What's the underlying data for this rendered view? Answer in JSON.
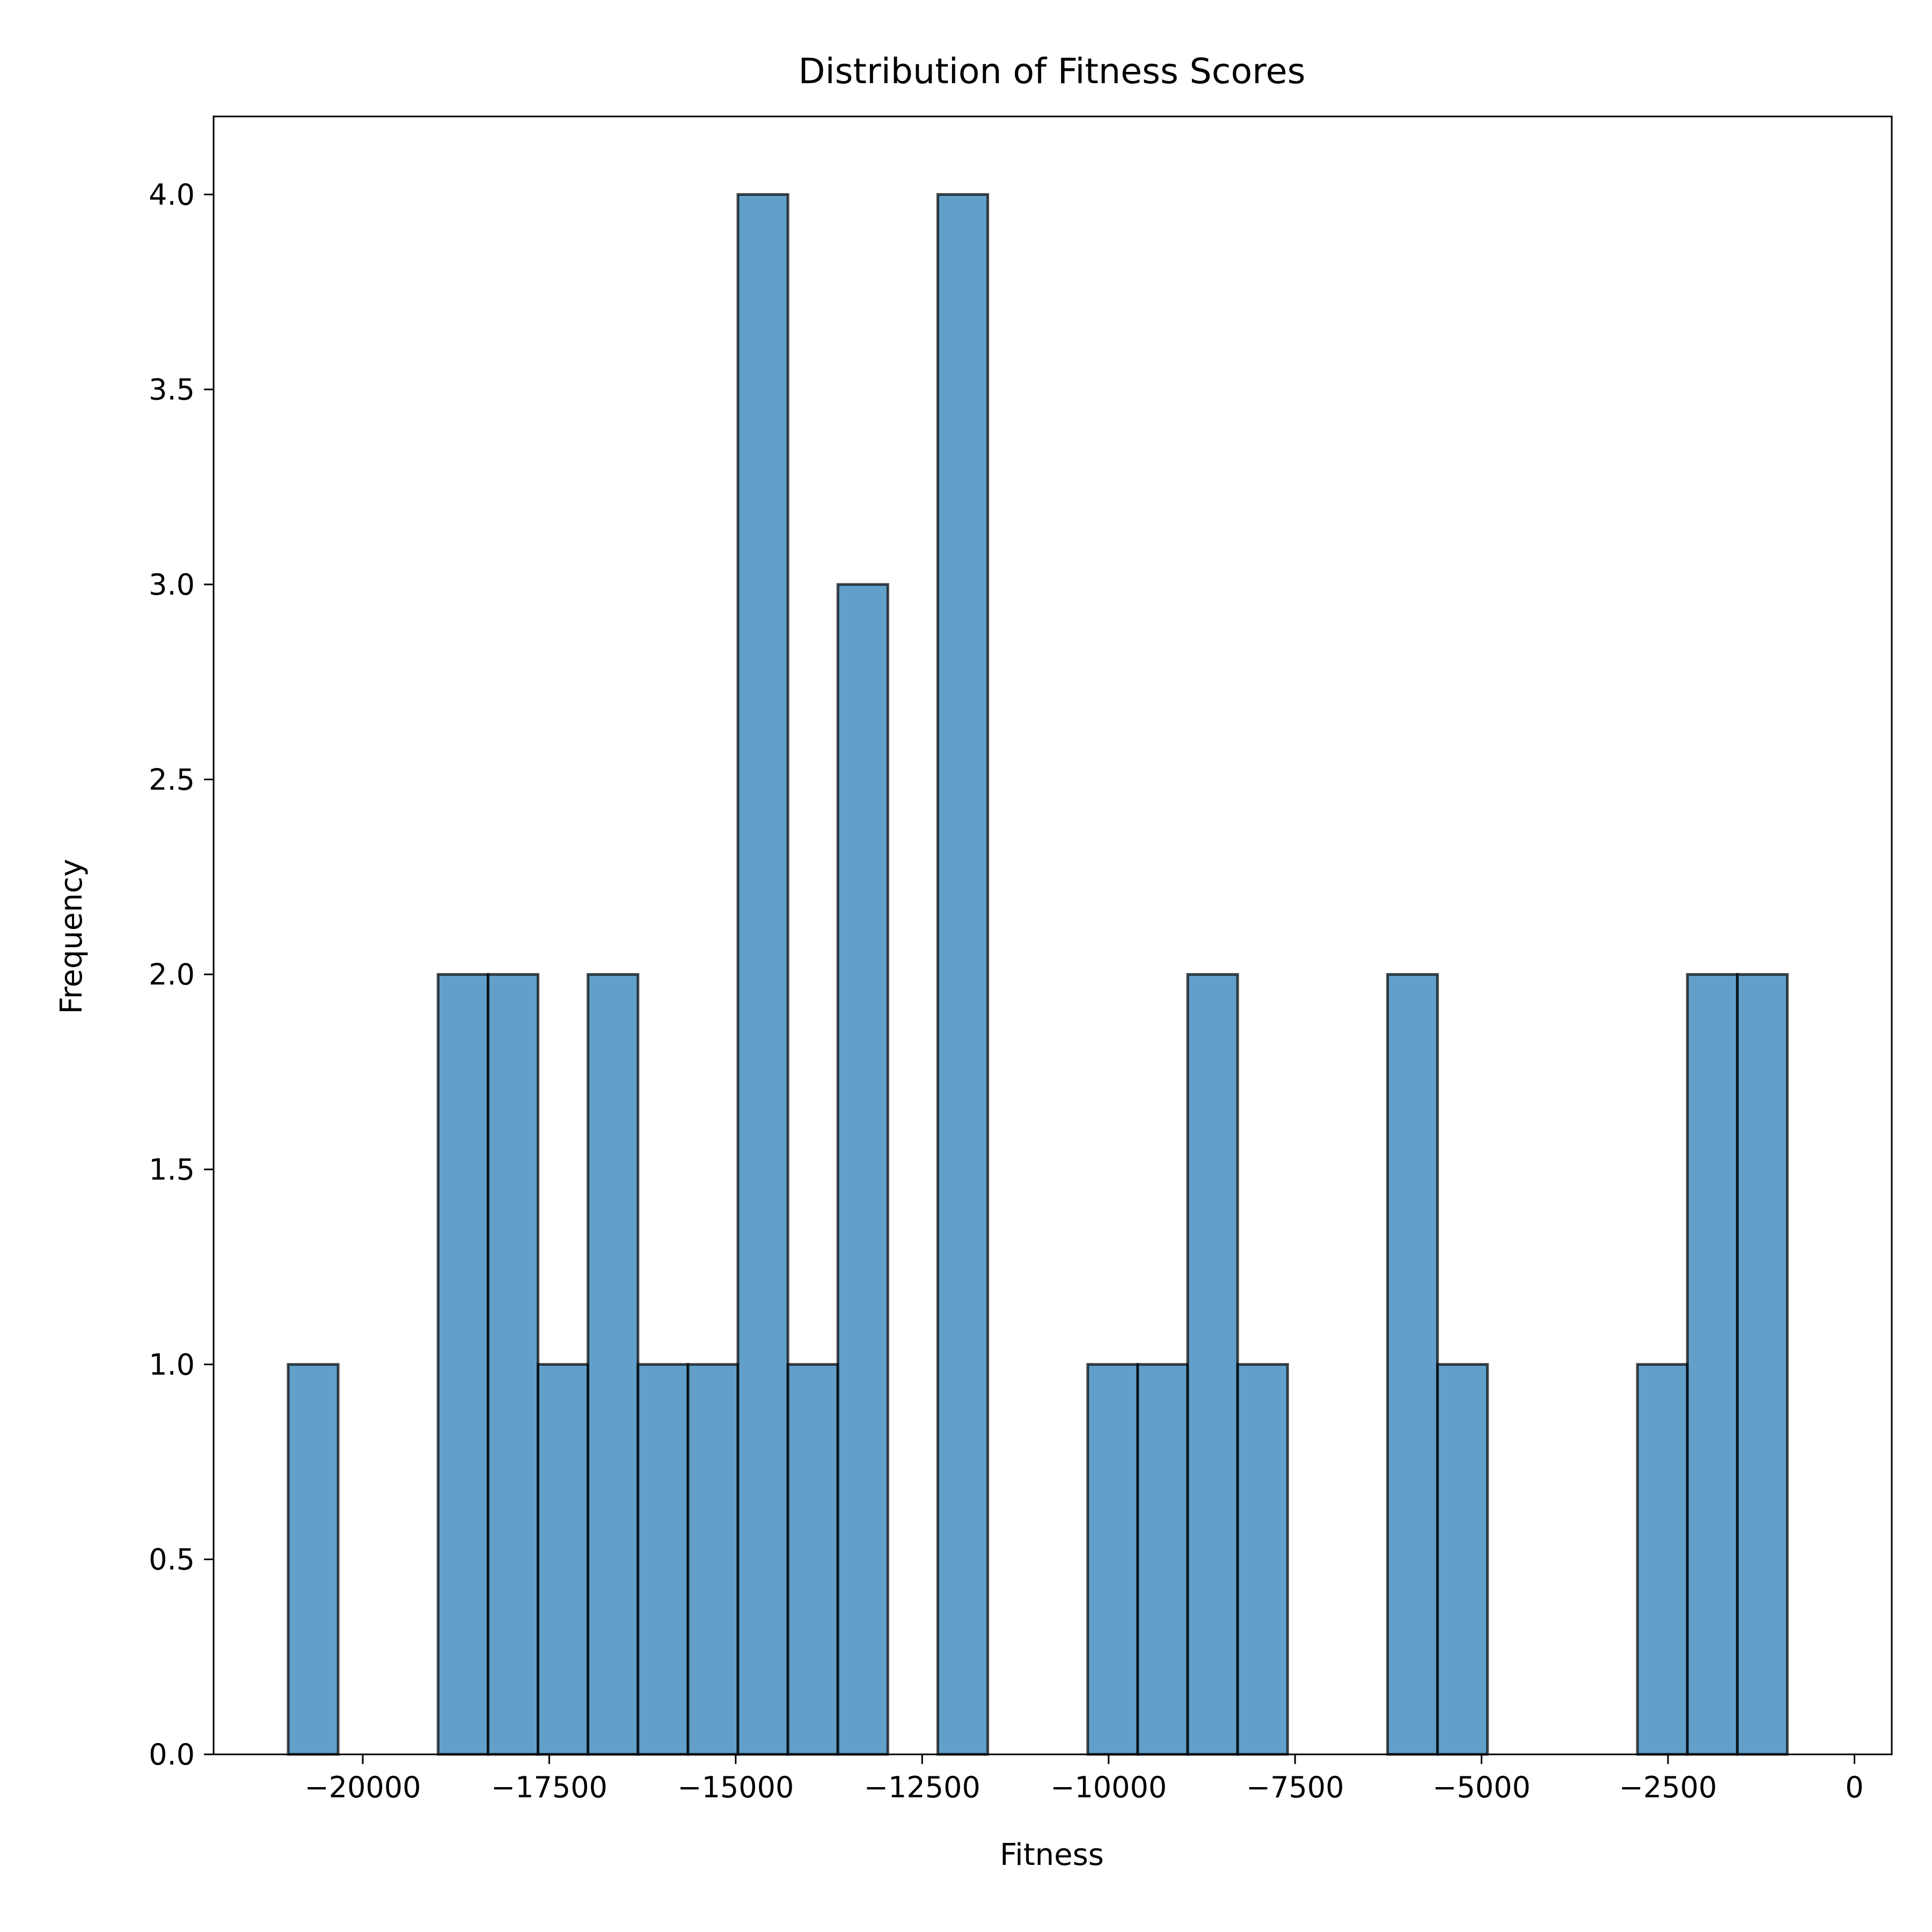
{
  "chart_data": {
    "type": "bar",
    "title": "Distribution of Fitness Scores",
    "xlabel": "Fitness",
    "ylabel": "Frequency",
    "xlim": [
      -22000,
      500
    ],
    "ylim": [
      0,
      4.2
    ],
    "xticks": [
      {
        "value": -20000,
        "label": "−20000"
      },
      {
        "value": -17500,
        "label": "−17500"
      },
      {
        "value": -15000,
        "label": "−15000"
      },
      {
        "value": -12500,
        "label": "−12500"
      },
      {
        "value": -10000,
        "label": "−10000"
      },
      {
        "value": -7500,
        "label": "−7500"
      },
      {
        "value": -5000,
        "label": "−5000"
      },
      {
        "value": -2500,
        "label": "−2500"
      },
      {
        "value": 0,
        "label": "0"
      }
    ],
    "yticks": [
      {
        "value": 0,
        "label": "0.0"
      },
      {
        "value": 0.5,
        "label": "0.5"
      },
      {
        "value": 1,
        "label": "1.0"
      },
      {
        "value": 1.5,
        "label": "1.5"
      },
      {
        "value": 2,
        "label": "2.0"
      },
      {
        "value": 2.5,
        "label": "2.5"
      },
      {
        "value": 3,
        "label": "3.0"
      },
      {
        "value": 3.5,
        "label": "3.5"
      },
      {
        "value": 4,
        "label": "4.0"
      }
    ],
    "bins": [
      {
        "x0": -21000,
        "x1": -20330,
        "count": 1
      },
      {
        "x0": -20330,
        "x1": -19660,
        "count": 0
      },
      {
        "x0": -19660,
        "x1": -18990,
        "count": 0
      },
      {
        "x0": -18990,
        "x1": -18320,
        "count": 2
      },
      {
        "x0": -18320,
        "x1": -17650,
        "count": 2
      },
      {
        "x0": -17650,
        "x1": -16980,
        "count": 1
      },
      {
        "x0": -16980,
        "x1": -16310,
        "count": 2
      },
      {
        "x0": -16310,
        "x1": -15640,
        "count": 1
      },
      {
        "x0": -15640,
        "x1": -14970,
        "count": 1
      },
      {
        "x0": -14970,
        "x1": -14300,
        "count": 4
      },
      {
        "x0": -14300,
        "x1": -13630,
        "count": 1
      },
      {
        "x0": -13630,
        "x1": -12960,
        "count": 3
      },
      {
        "x0": -12960,
        "x1": -12290,
        "count": 0
      },
      {
        "x0": -12290,
        "x1": -11620,
        "count": 4
      },
      {
        "x0": -11620,
        "x1": -10950,
        "count": 0
      },
      {
        "x0": -10950,
        "x1": -10280,
        "count": 0
      },
      {
        "x0": -10280,
        "x1": -9610,
        "count": 1
      },
      {
        "x0": -9610,
        "x1": -8940,
        "count": 1
      },
      {
        "x0": -8940,
        "x1": -8270,
        "count": 2
      },
      {
        "x0": -8270,
        "x1": -7600,
        "count": 1
      },
      {
        "x0": -7600,
        "x1": -6930,
        "count": 0
      },
      {
        "x0": -6930,
        "x1": -6260,
        "count": 0
      },
      {
        "x0": -6260,
        "x1": -5590,
        "count": 2
      },
      {
        "x0": -5590,
        "x1": -4920,
        "count": 1
      },
      {
        "x0": -4920,
        "x1": -4250,
        "count": 0
      },
      {
        "x0": -4250,
        "x1": -3580,
        "count": 0
      },
      {
        "x0": -3580,
        "x1": -2910,
        "count": 0
      },
      {
        "x0": -2910,
        "x1": -2240,
        "count": 1
      },
      {
        "x0": -2240,
        "x1": -1570,
        "count": 2
      },
      {
        "x0": -1570,
        "x1": -900,
        "count": 2
      }
    ],
    "grid": false,
    "colors": {
      "bar_fill": "#1f77b4",
      "bar_edge": "#000000"
    }
  }
}
